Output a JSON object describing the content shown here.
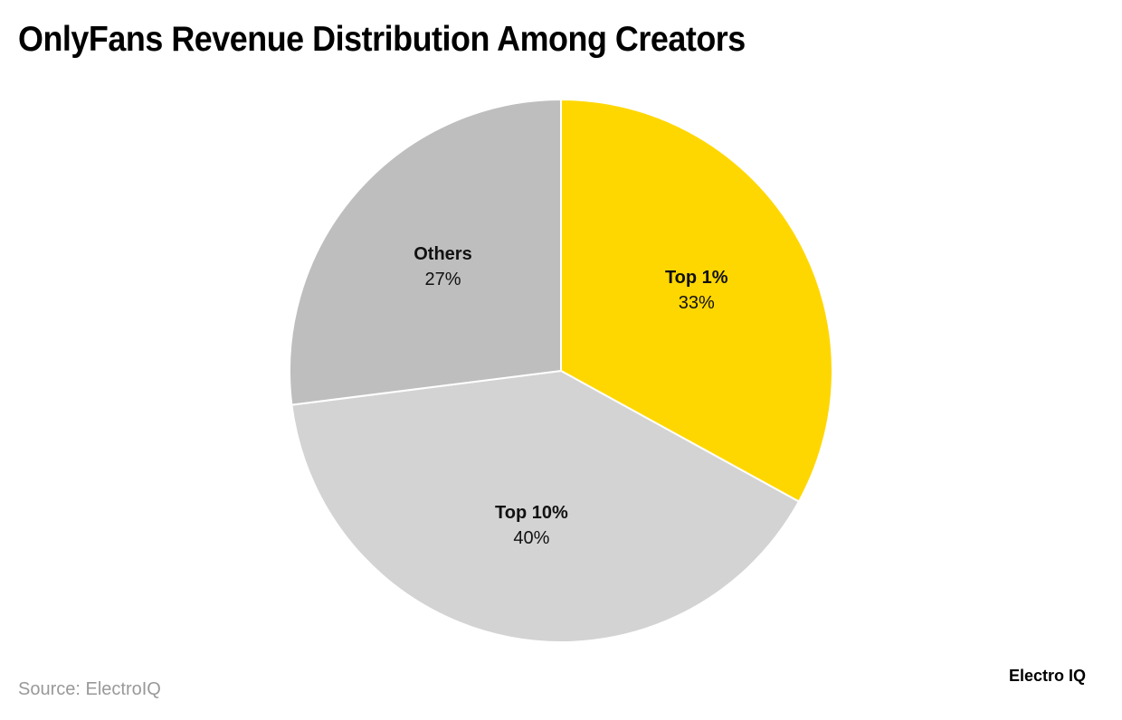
{
  "title": "OnlyFans Revenue Distribution Among Creators",
  "source": "Source: ElectroIQ",
  "brand": "Electro IQ",
  "slices": [
    {
      "label": "Top 1%",
      "value": "33%",
      "color": "#FFD700"
    },
    {
      "label": "Top 10%",
      "value": "40%",
      "color": "#D3D3D3"
    },
    {
      "label": "Others",
      "value": "27%",
      "color": "#BEBEBE"
    }
  ],
  "chart_data": {
    "type": "pie",
    "title": "OnlyFans Revenue Distribution Among Creators",
    "categories": [
      "Top 1%",
      "Top 10%",
      "Others"
    ],
    "values": [
      33,
      40,
      27
    ],
    "colors": [
      "#FFD700",
      "#D3D3D3",
      "#BEBEBE"
    ],
    "start_angle": "12 o'clock, clockwise",
    "legend": "none (labels on slices)",
    "source": "Source: ElectroIQ"
  }
}
